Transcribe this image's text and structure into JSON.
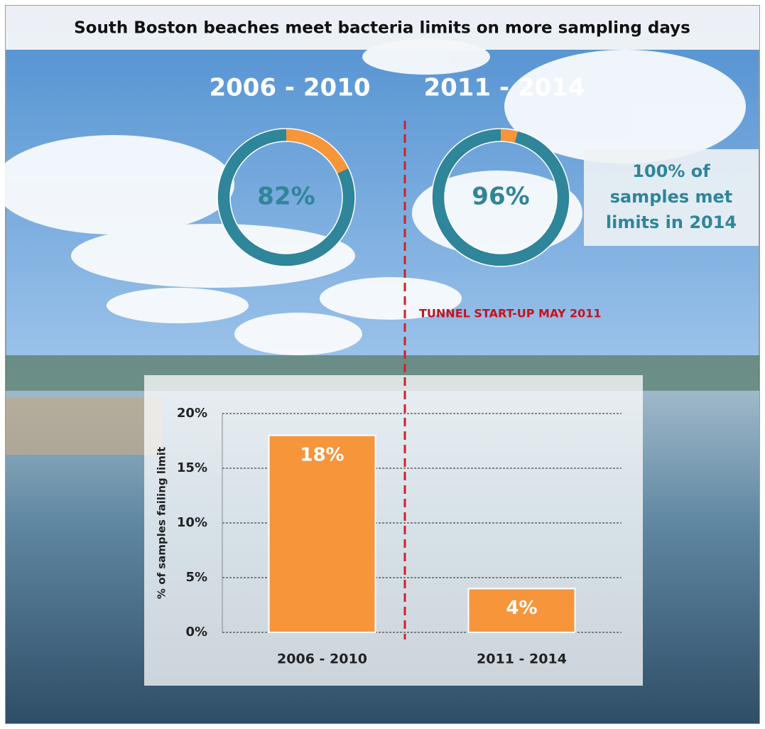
{
  "title": "South Boston beaches meet bacteria limits on more sampling days",
  "annotations": [
    "TUNNEL START-UP MAY 2011"
  ],
  "callout": {
    "lines": [
      "100% of",
      "samples met",
      "limits in 2014"
    ]
  },
  "chart_data": [
    {
      "type": "donut",
      "title": "2006 - 2010",
      "values": [
        82,
        18
      ],
      "value_labels": [
        "82%",
        null
      ],
      "colors": [
        "#2f8599",
        "#f7953b"
      ]
    },
    {
      "type": "donut",
      "title": "2011 - 2014",
      "values": [
        96,
        4
      ],
      "value_labels": [
        "96%",
        null
      ],
      "colors": [
        "#2f8599",
        "#f7953b"
      ]
    },
    {
      "type": "bar",
      "ylabel": "% of samples failing limit",
      "categories": [
        "2006 - 2010",
        "2011 - 2014"
      ],
      "values": [
        18,
        4
      ],
      "value_labels": [
        "18%",
        "4%"
      ],
      "color": "#f7953b",
      "ylim": [
        0,
        20
      ],
      "yticks": [
        {
          "value": 0,
          "label": "0%"
        },
        {
          "value": 5,
          "label": "5%"
        },
        {
          "value": 10,
          "label": "10%"
        },
        {
          "value": 15,
          "label": "15%"
        },
        {
          "value": 20,
          "label": "20%"
        }
      ],
      "grid": true
    }
  ]
}
